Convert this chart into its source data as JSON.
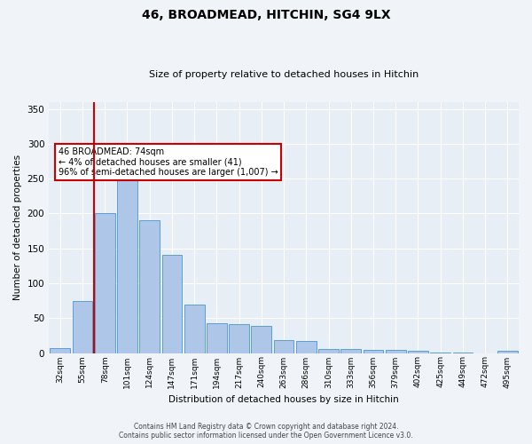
{
  "title": "46, BROADMEAD, HITCHIN, SG4 9LX",
  "subtitle": "Size of property relative to detached houses in Hitchin",
  "xlabel": "Distribution of detached houses by size in Hitchin",
  "ylabel": "Number of detached properties",
  "categories": [
    "32sqm",
    "55sqm",
    "78sqm",
    "101sqm",
    "124sqm",
    "147sqm",
    "171sqm",
    "194sqm",
    "217sqm",
    "240sqm",
    "263sqm",
    "286sqm",
    "310sqm",
    "333sqm",
    "356sqm",
    "379sqm",
    "402sqm",
    "425sqm",
    "449sqm",
    "472sqm",
    "495sqm"
  ],
  "values": [
    7,
    75,
    201,
    261,
    190,
    141,
    70,
    43,
    41,
    39,
    18,
    17,
    6,
    6,
    5,
    4,
    3,
    1,
    1,
    0,
    3
  ],
  "bar_color": "#aec6e8",
  "bar_edge_color": "#5a9fd4",
  "vline_color": "#cc0000",
  "annotation_text": "46 BROADMEAD: 74sqm\n← 4% of detached houses are smaller (41)\n96% of semi-detached houses are larger (1,007) →",
  "annotation_box_color": "#ffffff",
  "annotation_box_edge": "#cc0000",
  "ylim": [
    0,
    360
  ],
  "yticks": [
    0,
    50,
    100,
    150,
    200,
    250,
    300,
    350
  ],
  "bg_color": "#e8eef5",
  "grid_color": "#ffffff",
  "fig_bg_color": "#f0f4f8",
  "footer_line1": "Contains HM Land Registry data © Crown copyright and database right 2024.",
  "footer_line2": "Contains public sector information licensed under the Open Government Licence v3.0."
}
